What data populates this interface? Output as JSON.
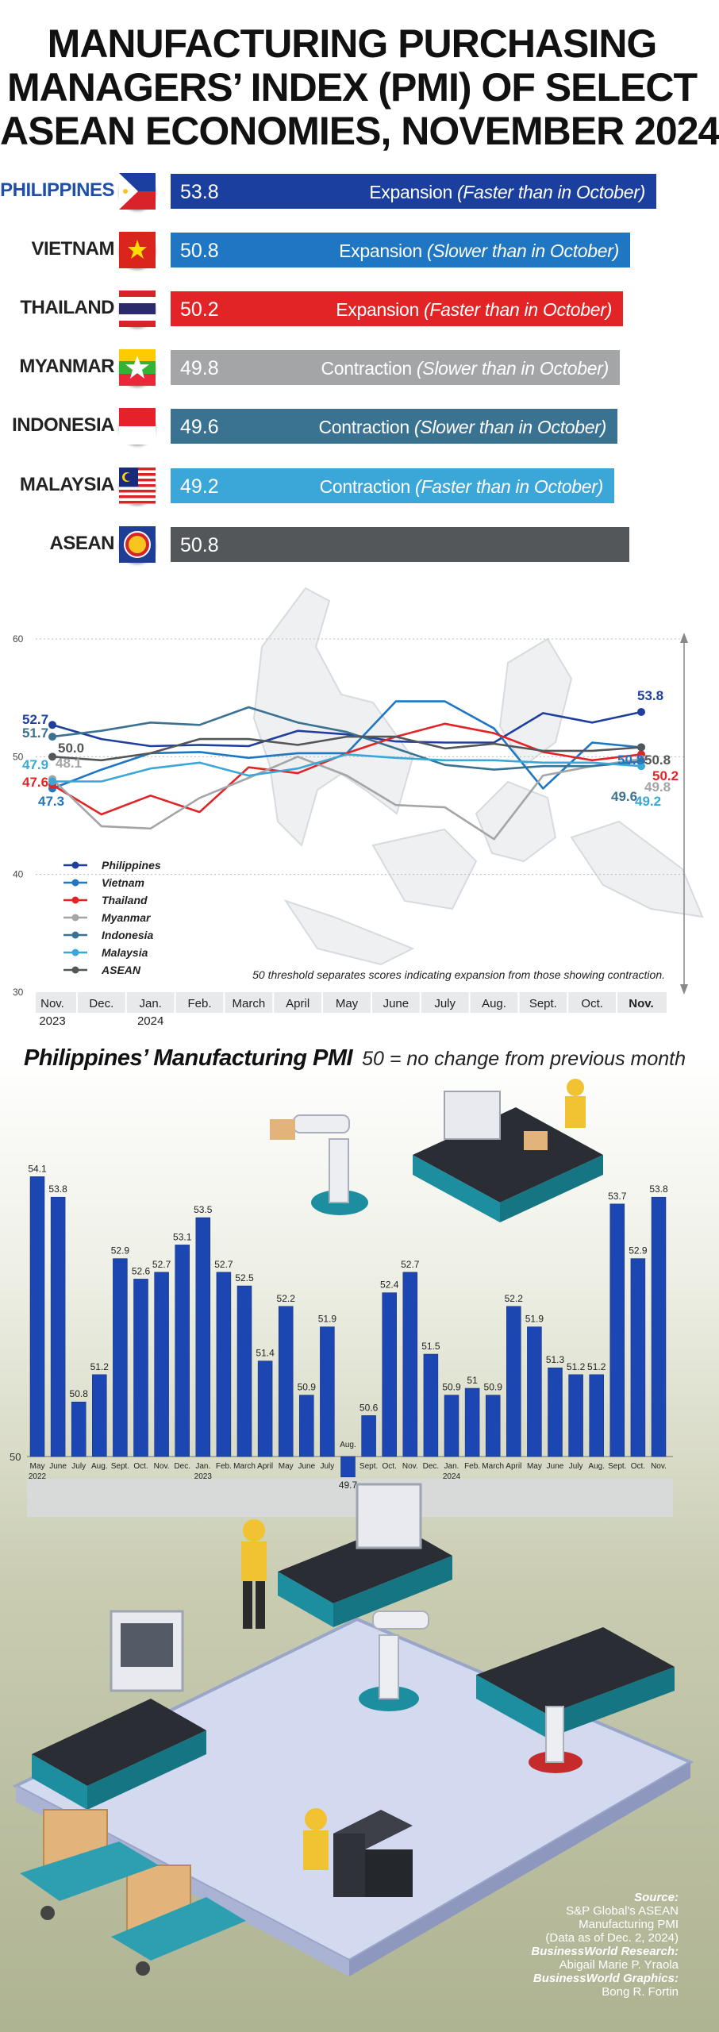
{
  "title_lines": [
    "MANUFACTURING PURCHASING",
    "MANAGERS’ INDEX (PMI) OF SELECT",
    "ASEAN ECONOMIES, NOVEMBER 2024"
  ],
  "colors": {
    "philippines": "#1f3f9e",
    "vietnam": "#1f76c2",
    "thailand": "#e32427",
    "myanmar": "#a3a5a7",
    "indonesia": "#3a7292",
    "malaysia": "#3aa7d8",
    "asean": "#545759"
  },
  "countries": [
    {
      "name": "PHILIPPINES",
      "value": "53.8",
      "status": "Expansion",
      "note": "(Faster than in October)",
      "color": "#1a3f9e",
      "flag": "philippines-flag-icon"
    },
    {
      "name": "VIETNAM",
      "value": "50.8",
      "status": "Expansion",
      "note": "(Slower than in October)",
      "color": "#1f76c2",
      "flag": "vietnam-flag-icon"
    },
    {
      "name": "THAILAND",
      "value": "50.2",
      "status": "Expansion",
      "note": "(Faster than in October)",
      "color": "#e32427",
      "flag": "thailand-flag-icon"
    },
    {
      "name": "MYANMAR",
      "value": "49.8",
      "status": "Contraction",
      "note": "(Slower than in October)",
      "color": "#a3a5a7",
      "flag": "myanmar-flag-icon"
    },
    {
      "name": "INDONESIA",
      "value": "49.6",
      "status": "Contraction",
      "note": "(Slower than in October)",
      "color": "#3a7292",
      "flag": "indonesia-flag-icon"
    },
    {
      "name": "MALAYSIA",
      "value": "49.2",
      "status": "Contraction",
      "note": "(Faster than in October)",
      "color": "#3aa7d8",
      "flag": "malaysia-flag-icon"
    },
    {
      "name": "ASEAN",
      "value": "50.8",
      "status": "",
      "note": "",
      "color": "#545759",
      "flag": "asean-emblem-icon"
    }
  ],
  "chart_data": [
    {
      "type": "line",
      "title": "",
      "categories": [
        "Nov.\n2023",
        "Dec.",
        "Jan.\n2024",
        "Feb.",
        "March",
        "April",
        "May",
        "June",
        "July",
        "Aug.",
        "Sept.",
        "Oct.",
        "Nov."
      ],
      "ylim": [
        30,
        60
      ],
      "yticks": [
        30,
        40,
        50,
        60
      ],
      "grid": true,
      "annotation": "50 threshold separates scores indicating expansion from those showing contraction.",
      "start_labels": [
        "52.7",
        "51.7",
        "50.0",
        "48.1",
        "47.9",
        "47.6",
        "47.3"
      ],
      "end_labels": [
        "53.8",
        "50.8",
        "50.8",
        "50.2",
        "49.8",
        "49.6",
        "49.2"
      ],
      "series": [
        {
          "name": "Philippines",
          "key": "philippines",
          "values": [
            52.7,
            51.5,
            50.9,
            51.0,
            50.9,
            52.2,
            51.9,
            51.3,
            51.2,
            51.2,
            53.7,
            52.9,
            53.8
          ]
        },
        {
          "name": "Vietnam",
          "key": "vietnam",
          "values": [
            47.3,
            48.9,
            50.3,
            50.4,
            49.9,
            50.3,
            50.3,
            54.7,
            54.7,
            52.4,
            47.3,
            51.2,
            50.8
          ]
        },
        {
          "name": "Thailand",
          "key": "thailand",
          "values": [
            47.6,
            45.1,
            46.7,
            45.3,
            49.1,
            48.6,
            50.3,
            51.7,
            52.8,
            52.0,
            50.4,
            49.7,
            50.2
          ]
        },
        {
          "name": "Myanmar",
          "key": "myanmar",
          "values": [
            48.1,
            44.1,
            43.9,
            46.5,
            48.2,
            50.0,
            48.4,
            45.9,
            45.7,
            43.0,
            48.4,
            49.2,
            49.8
          ]
        },
        {
          "name": "Indonesia",
          "key": "indonesia",
          "values": [
            51.7,
            52.2,
            52.9,
            52.7,
            54.2,
            52.9,
            52.1,
            50.7,
            49.3,
            48.9,
            49.2,
            49.2,
            49.6
          ]
        },
        {
          "name": "Malaysia",
          "key": "malaysia",
          "values": [
            47.9,
            47.9,
            49.0,
            49.5,
            48.4,
            49.0,
            50.2,
            49.9,
            49.7,
            49.7,
            49.5,
            49.5,
            49.2
          ]
        },
        {
          "name": "ASEAN",
          "key": "asean",
          "values": [
            50.0,
            49.7,
            50.3,
            51.5,
            51.5,
            51.0,
            51.7,
            51.7,
            50.7,
            51.1,
            50.5,
            50.5,
            50.8
          ]
        }
      ]
    },
    {
      "type": "bar",
      "title": "Philippines’ Manufacturing PMI",
      "subtitle": "50 = no change from previous month",
      "baseline": 50,
      "ylim": [
        49.5,
        54.5
      ],
      "categories": [
        "May\n2022",
        "June",
        "July",
        "Aug.",
        "Sept.",
        "Oct.",
        "Nov.",
        "Dec.",
        "Jan.\n2023",
        "Feb.",
        "March",
        "April",
        "May",
        "June",
        "July",
        "Aug.",
        "Sept.",
        "Oct.",
        "Nov.",
        "Dec.",
        "Jan.\n2024",
        "Feb.",
        "March",
        "April",
        "May",
        "June",
        "July",
        "Aug.",
        "Sept.",
        "Oct.",
        "Nov."
      ],
      "values": [
        54.1,
        53.8,
        50.8,
        51.2,
        52.9,
        52.6,
        52.7,
        53.1,
        53.5,
        52.7,
        52.5,
        51.4,
        52.2,
        50.9,
        51.9,
        49.7,
        50.6,
        52.4,
        52.7,
        51.5,
        50.9,
        51.0,
        50.9,
        52.2,
        51.9,
        51.3,
        51.2,
        51.2,
        53.7,
        52.9,
        53.8
      ],
      "baseline_label": "50"
    }
  ],
  "source": {
    "label": "Source:",
    "lines": [
      "S&P Global's ASEAN",
      "Manufacturing PMI",
      "(Data as of Dec. 2, 2024)"
    ],
    "research_label": "BusinessWorld Research:",
    "research_name": "Abigail Marie P. Yraola",
    "graphics_label": "BusinessWorld Graphics:",
    "graphics_name": "Bong R. Fortin"
  }
}
